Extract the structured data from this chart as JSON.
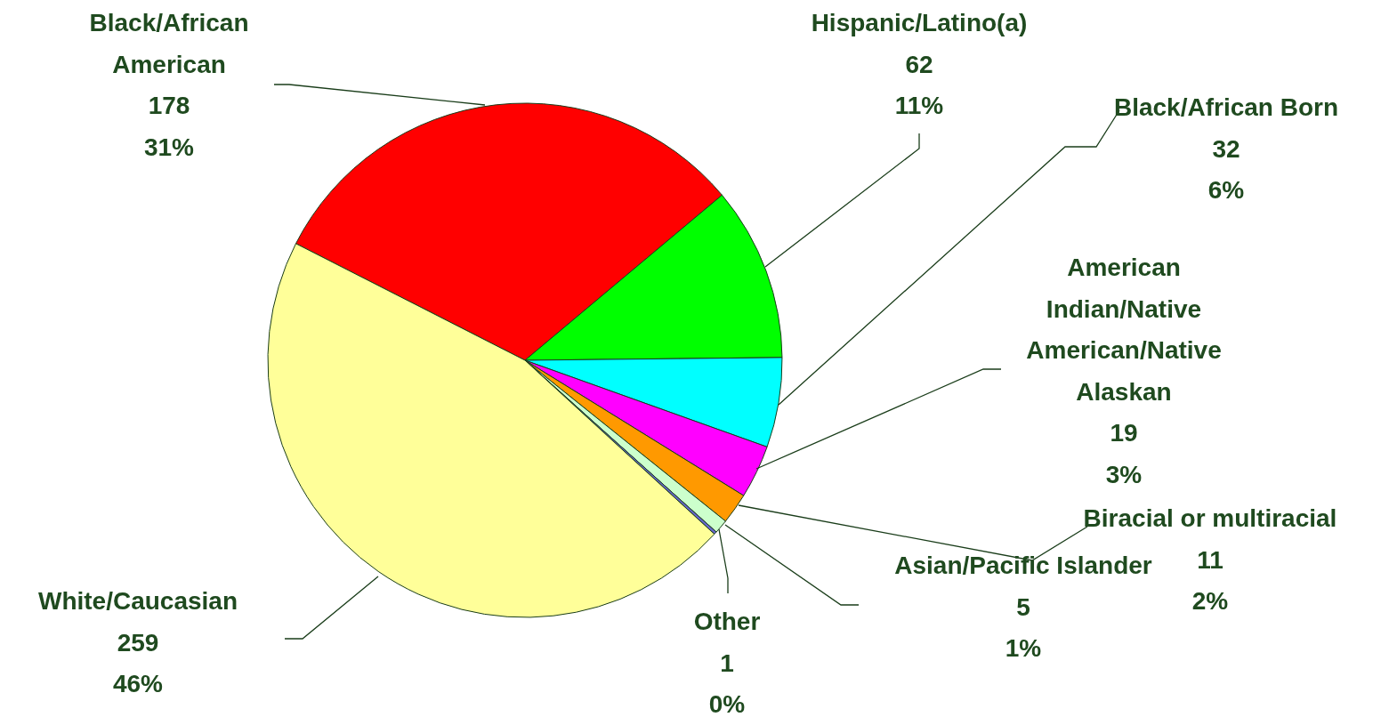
{
  "chart_data": {
    "type": "pie",
    "categories": [
      "Black/African American",
      "Hispanic/Latino(a)",
      "Black/African Born",
      "American Indian/Native American/Native Alaskan",
      "Biracial or multiracial",
      "Asian/Pacific Islander",
      "Other",
      "White/Caucasian"
    ],
    "values": [
      178,
      62,
      32,
      19,
      11,
      5,
      1,
      259
    ],
    "colors": [
      "#ff0000",
      "#00ff00",
      "#00ffff",
      "#ff00ff",
      "#ff9900",
      "#ccffcc",
      "#6666cc",
      "#ffff99"
    ],
    "value_labels": [
      "178\n31%",
      "62\n11%",
      "32\n6%",
      "19\n3%",
      "11\n2%",
      "5\n1%",
      "1\n0%",
      "259\n46%"
    ]
  }
}
